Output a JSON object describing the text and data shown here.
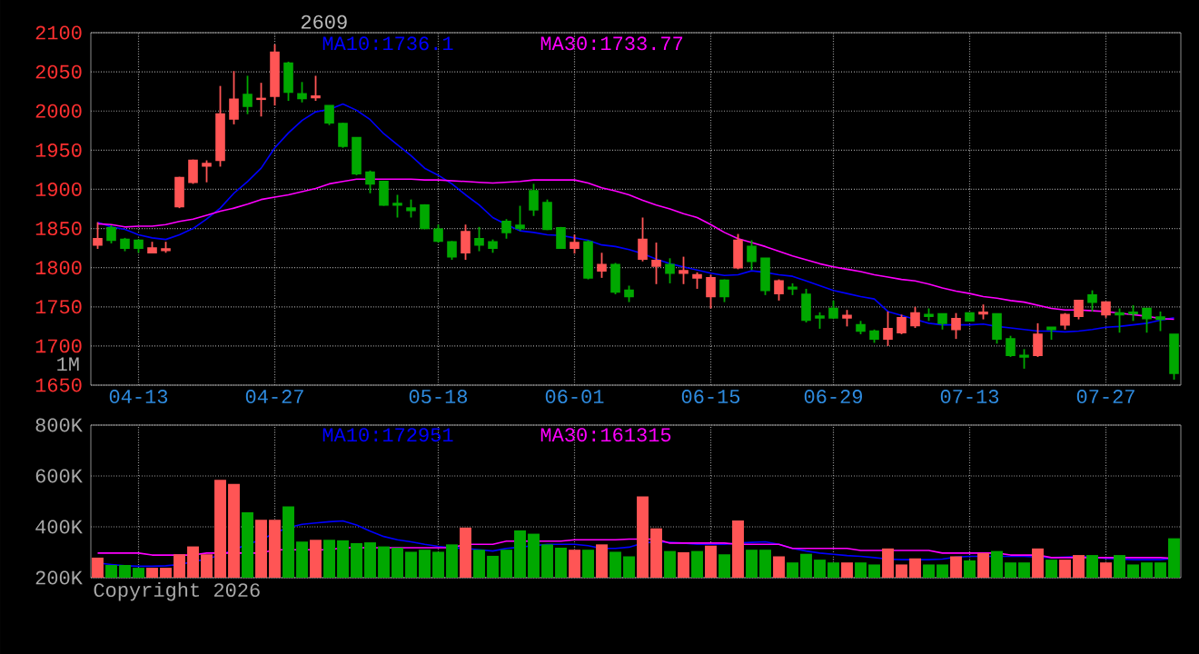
{
  "chart_data": [
    {
      "type": "candlestick",
      "title": "2609",
      "categories": [
        null,
        null,
        null,
        "04-13",
        null,
        null,
        null,
        null,
        null,
        null,
        null,
        null,
        null,
        "04-27",
        null,
        null,
        null,
        null,
        null,
        null,
        null,
        null,
        null,
        null,
        null,
        "05-18",
        null,
        null,
        null,
        null,
        null,
        null,
        null,
        null,
        null,
        "06-01",
        null,
        null,
        null,
        null,
        null,
        null,
        null,
        null,
        null,
        "06-15",
        null,
        null,
        null,
        null,
        null,
        null,
        null,
        null,
        "06-29",
        null,
        null,
        null,
        null,
        null,
        null,
        null,
        null,
        null,
        "07-13",
        null,
        null,
        null,
        null,
        null,
        null,
        null,
        null,
        null,
        "07-27",
        null,
        null,
        null,
        null,
        null
      ],
      "ohlc": [
        [
          1829,
          1858,
          1824,
          1837
        ],
        [
          1851,
          1854,
          1831,
          1835
        ],
        [
          1836,
          1838,
          1821,
          1825
        ],
        [
          1835,
          1836,
          1819,
          1825
        ],
        [
          1819,
          1833,
          1819,
          1825
        ],
        [
          1822,
          1833,
          1819,
          1824
        ],
        [
          1878,
          1916,
          1876,
          1915
        ],
        [
          1909,
          1938,
          1907,
          1937
        ],
        [
          1930,
          1937,
          1909,
          1933
        ],
        [
          1937,
          2032,
          1929,
          1996
        ],
        [
          1990,
          2051,
          1983,
          2015
        ],
        [
          2021,
          2045,
          1996,
          2006
        ],
        [
          2015,
          2036,
          1993,
          2016
        ],
        [
          2019,
          2085,
          2007,
          2075
        ],
        [
          2061,
          2063,
          2013,
          2024
        ],
        [
          2022,
          2037,
          2011,
          2016
        ],
        [
          2017,
          2045,
          2013,
          2019
        ],
        [
          2007,
          2007,
          1982,
          1985
        ],
        [
          1984,
          1985,
          1953,
          1955
        ],
        [
          1966,
          1966,
          1918,
          1920
        ],
        [
          1922,
          1924,
          1895,
          1907
        ],
        [
          1910,
          1911,
          1879,
          1880
        ],
        [
          1882,
          1893,
          1864,
          1880
        ],
        [
          1876,
          1887,
          1864,
          1873
        ],
        [
          1880,
          1881,
          1849,
          1850
        ],
        [
          1849,
          1855,
          1832,
          1834
        ],
        [
          1833,
          1834,
          1810,
          1814
        ],
        [
          1819,
          1855,
          1810,
          1846
        ],
        [
          1837,
          1852,
          1821,
          1829
        ],
        [
          1833,
          1836,
          1819,
          1825
        ],
        [
          1859,
          1862,
          1837,
          1845
        ],
        [
          1854,
          1879,
          1847,
          1850
        ],
        [
          1898,
          1907,
          1866,
          1874
        ],
        [
          1883,
          1887,
          1848,
          1849
        ],
        [
          1851,
          1852,
          1825,
          1825
        ],
        [
          1825,
          1842,
          1818,
          1832
        ],
        [
          1833,
          1835,
          1785,
          1787
        ],
        [
          1796,
          1819,
          1787,
          1804
        ],
        [
          1804,
          1806,
          1766,
          1769
        ],
        [
          1771,
          1777,
          1756,
          1763
        ],
        [
          1811,
          1864,
          1808,
          1836
        ],
        [
          1802,
          1832,
          1779,
          1809
        ],
        [
          1804,
          1812,
          1780,
          1793
        ],
        [
          1793,
          1814,
          1779,
          1796
        ],
        [
          1787,
          1794,
          1773,
          1791
        ],
        [
          1763,
          1791,
          1748,
          1787
        ],
        [
          1784,
          1785,
          1756,
          1763
        ],
        [
          1800,
          1843,
          1798,
          1835
        ],
        [
          1827,
          1835,
          1797,
          1808
        ],
        [
          1812,
          1812,
          1765,
          1771
        ],
        [
          1767,
          1785,
          1758,
          1783
        ],
        [
          1775,
          1780,
          1765,
          1773
        ],
        [
          1766,
          1773,
          1730,
          1733
        ],
        [
          1738,
          1743,
          1722,
          1736
        ],
        [
          1748,
          1758,
          1735,
          1736
        ],
        [
          1736,
          1746,
          1725,
          1739
        ],
        [
          1727,
          1732,
          1715,
          1719
        ],
        [
          1719,
          1721,
          1704,
          1709
        ],
        [
          1709,
          1744,
          1700,
          1722
        ],
        [
          1717,
          1740,
          1715,
          1736
        ],
        [
          1726,
          1750,
          1723,
          1742
        ],
        [
          1740,
          1748,
          1732,
          1738
        ],
        [
          1741,
          1741,
          1721,
          1729
        ],
        [
          1721,
          1742,
          1709,
          1735
        ],
        [
          1742,
          1742,
          1731,
          1732
        ],
        [
          1741,
          1753,
          1734,
          1743
        ],
        [
          1741,
          1741,
          1703,
          1709
        ],
        [
          1709,
          1713,
          1686,
          1688
        ],
        [
          1688,
          1696,
          1671,
          1686
        ],
        [
          1688,
          1729,
          1686,
          1715
        ],
        [
          1724,
          1724,
          1708,
          1721
        ],
        [
          1727,
          1742,
          1721,
          1740
        ],
        [
          1738,
          1758,
          1734,
          1758
        ],
        [
          1765,
          1771,
          1744,
          1756
        ],
        [
          1740,
          1756,
          1736,
          1756
        ],
        [
          1742,
          1748,
          1717,
          1740
        ],
        [
          1743,
          1752,
          1732,
          1741
        ],
        [
          1748,
          1748,
          1717,
          1735
        ],
        [
          1737,
          1744,
          1719,
          1734
        ],
        [
          1715,
          1715,
          1657,
          1665
        ]
      ],
      "colors": [
        "#ff5555",
        "#00a800",
        "#00a800",
        "#00a800",
        "#ff5555",
        "#ff5555",
        "#ff5555",
        "#ff5555",
        "#ff5555",
        "#ff5555",
        "#ff5555",
        "#00a800",
        "#ff5555",
        "#ff5555",
        "#00a800",
        "#00a800",
        "#ff5555",
        "#00a800",
        "#00a800",
        "#00a800",
        "#00a800",
        "#00a800",
        "#00a800",
        "#00a800",
        "#00a800",
        "#00a800",
        "#00a800",
        "#ff5555",
        "#00a800",
        "#00a800",
        "#00a800",
        "#00a800",
        "#00a800",
        "#00a800",
        "#00a800",
        "#ff5555",
        "#00a800",
        "#ff5555",
        "#00a800",
        "#00a800",
        "#ff5555",
        "#ff5555",
        "#00a800",
        "#ff5555",
        "#ff5555",
        "#ff5555",
        "#00a800",
        "#ff5555",
        "#00a800",
        "#00a800",
        "#ff5555",
        "#00a800",
        "#00a800",
        "#00a800",
        "#00a800",
        "#ff5555",
        "#00a800",
        "#00a800",
        "#ff5555",
        "#ff5555",
        "#ff5555",
        "#00a800",
        "#00a800",
        "#ff5555",
        "#00a800",
        "#ff5555",
        "#00a800",
        "#00a800",
        "#00a800",
        "#ff5555",
        "#00a800",
        "#ff5555",
        "#ff5555",
        "#00a800",
        "#ff5555",
        "#00a800",
        "#00a800",
        "#00a800",
        "#00a800",
        "#00a800"
      ],
      "series": [
        {
          "type": "line",
          "name": "MA10:1736.1",
          "color": "#0000ff",
          "values": [
            1858,
            1852,
            1849,
            1842,
            1838,
            1836,
            1842,
            1850,
            1862,
            1876,
            1895,
            1910,
            1927,
            1953,
            1972,
            1988,
            1999,
            2002,
            2009,
            2001,
            1989,
            1971,
            1957,
            1943,
            1927,
            1918,
            1907,
            1893,
            1880,
            1864,
            1855,
            1847,
            1845,
            1842,
            1841,
            1838,
            1835,
            1829,
            1827,
            1823,
            1818,
            1811,
            1805,
            1801,
            1797,
            1793,
            1790,
            1791,
            1796,
            1794,
            1791,
            1789,
            1783,
            1777,
            1771,
            1767,
            1763,
            1760,
            1744,
            1739,
            1734,
            1729,
            1727,
            1727,
            1727,
            1728,
            1725,
            1723,
            1721,
            1719,
            1719,
            1718,
            1719,
            1721,
            1724,
            1725,
            1727,
            1729,
            1733,
            1736
          ]
        },
        {
          "type": "line",
          "name": "MA30:1733.77",
          "color": "#ff00ff",
          "values": [
            1856,
            1855,
            1852,
            1853,
            1853,
            1855,
            1859,
            1862,
            1867,
            1872,
            1876,
            1881,
            1887,
            1890,
            1893,
            1897,
            1901,
            1907,
            1910,
            1913,
            1913,
            1913,
            1913,
            1913,
            1912,
            1912,
            1911,
            1910,
            1909,
            1908,
            1909,
            1910,
            1912,
            1912,
            1912,
            1912,
            1908,
            1902,
            1898,
            1893,
            1886,
            1880,
            1875,
            1869,
            1864,
            1855,
            1845,
            1837,
            1832,
            1827,
            1821,
            1815,
            1810,
            1805,
            1801,
            1798,
            1795,
            1791,
            1788,
            1785,
            1783,
            1779,
            1774,
            1770,
            1767,
            1763,
            1761,
            1758,
            1756,
            1752,
            1748,
            1746,
            1746,
            1745,
            1744,
            1742,
            1740,
            1738,
            1735,
            1734
          ]
        }
      ],
      "ylim": [
        1650,
        2100
      ],
      "yticks": [
        1650,
        1700,
        1750,
        1800,
        1850,
        1900,
        1950,
        2000,
        2050,
        2100
      ],
      "grid": true,
      "legend": "top",
      "annotations": [
        "1M"
      ]
    },
    {
      "type": "bar",
      "tick_labels": "y",
      "categories": [
        null,
        null,
        null,
        null,
        null,
        null,
        null,
        null,
        null,
        null,
        null,
        null,
        null,
        null,
        null,
        null,
        null,
        null,
        null,
        null,
        null,
        null,
        null,
        null,
        null,
        null,
        null,
        null,
        null,
        null,
        null,
        null,
        null,
        null,
        null,
        null,
        null,
        null,
        null,
        null,
        null,
        null,
        null,
        null,
        null,
        null,
        null,
        null,
        null,
        null,
        null,
        null,
        null,
        null,
        null,
        null,
        null,
        null,
        null,
        null,
        null,
        null,
        null,
        null,
        null,
        null,
        null,
        null,
        null,
        null,
        null,
        null,
        null,
        null,
        null,
        null,
        null,
        null,
        null,
        null
      ],
      "values": [
        279,
        250,
        250,
        239,
        239,
        239,
        292,
        323,
        292,
        585,
        569,
        457,
        428,
        428,
        480,
        342,
        349,
        349,
        347,
        336,
        339,
        323,
        318,
        302,
        310,
        302,
        331,
        397,
        310,
        286,
        310,
        386,
        373,
        331,
        318,
        310,
        310,
        331,
        302,
        284,
        520,
        394,
        305,
        300,
        305,
        326,
        292,
        425,
        310,
        310,
        284,
        260,
        294,
        271,
        260,
        260,
        260,
        252,
        315,
        252,
        276,
        252,
        252,
        284,
        268,
        297,
        305,
        260,
        260,
        315,
        271,
        271,
        289,
        289,
        260,
        289,
        252,
        260,
        260,
        355
      ],
      "colors": [
        "#ff5555",
        "#00a800",
        "#00a800",
        "#00a800",
        "#ff5555",
        "#ff5555",
        "#ff5555",
        "#ff5555",
        "#ff5555",
        "#ff5555",
        "#ff5555",
        "#00a800",
        "#ff5555",
        "#ff5555",
        "#00a800",
        "#00a800",
        "#ff5555",
        "#00a800",
        "#00a800",
        "#00a800",
        "#00a800",
        "#00a800",
        "#00a800",
        "#00a800",
        "#00a800",
        "#00a800",
        "#00a800",
        "#ff5555",
        "#00a800",
        "#00a800",
        "#00a800",
        "#00a800",
        "#00a800",
        "#00a800",
        "#00a800",
        "#ff5555",
        "#00a800",
        "#ff5555",
        "#00a800",
        "#00a800",
        "#ff5555",
        "#ff5555",
        "#00a800",
        "#ff5555",
        "#00a800",
        "#ff5555",
        "#00a800",
        "#ff5555",
        "#00a800",
        "#00a800",
        "#ff5555",
        "#00a800",
        "#00a800",
        "#00a800",
        "#00a800",
        "#ff5555",
        "#00a800",
        "#00a800",
        "#ff5555",
        "#ff5555",
        "#ff5555",
        "#00a800",
        "#00a800",
        "#ff5555",
        "#00a800",
        "#ff5555",
        "#00a800",
        "#00a800",
        "#00a800",
        "#ff5555",
        "#00a800",
        "#ff5555",
        "#ff5555",
        "#00a800",
        "#ff5555",
        "#00a800",
        "#00a800",
        "#00a800",
        "#00a800",
        "#00a800"
      ],
      "series": [
        {
          "type": "line",
          "name": "MA10:172951",
          "color": "#0000ff",
          "values": [
            258,
            252,
            247,
            245,
            245,
            247,
            252,
            263,
            273,
            289,
            310,
            331,
            349,
            376,
            397,
            410,
            415,
            420,
            423,
            407,
            383,
            362,
            349,
            341,
            331,
            323,
            318,
            315,
            310,
            305,
            315,
            320,
            326,
            331,
            331,
            331,
            326,
            315,
            315,
            320,
            336,
            341,
            339,
            336,
            331,
            331,
            331,
            336,
            339,
            341,
            331,
            315,
            305,
            297,
            292,
            287,
            284,
            279,
            273,
            271,
            271,
            271,
            273,
            281,
            284,
            284,
            284,
            284,
            284,
            281,
            279,
            281,
            284,
            281,
            276,
            273,
            271,
            271,
            271,
            276
          ]
        },
        {
          "type": "line",
          "name": "MA30:161315",
          "color": "#ff00ff",
          "values": [
            297,
            297,
            297,
            297,
            289,
            289,
            289,
            289,
            297,
            297,
            297,
            297,
            297,
            310,
            310,
            310,
            310,
            310,
            318,
            318,
            318,
            318,
            318,
            318,
            318,
            318,
            318,
            331,
            331,
            331,
            344,
            344,
            344,
            344,
            344,
            349,
            349,
            349,
            349,
            352,
            352,
            352,
            336,
            336,
            336,
            336,
            336,
            331,
            331,
            331,
            331,
            315,
            315,
            315,
            315,
            315,
            307,
            307,
            307,
            307,
            307,
            307,
            297,
            297,
            297,
            297,
            297,
            289,
            289,
            289,
            279,
            279,
            279,
            279,
            279,
            279,
            279,
            279,
            279,
            276
          ]
        }
      ],
      "ylim": [
        200,
        800
      ],
      "yticks": [
        {
          "value": 200,
          "label": "200K"
        },
        {
          "value": 400,
          "label": "400K"
        },
        {
          "value": 600,
          "label": "600K"
        },
        {
          "value": 800,
          "label": "800K"
        }
      ],
      "grid": true,
      "legend": "top",
      "annotations": [
        "Copyright 2026"
      ]
    }
  ]
}
